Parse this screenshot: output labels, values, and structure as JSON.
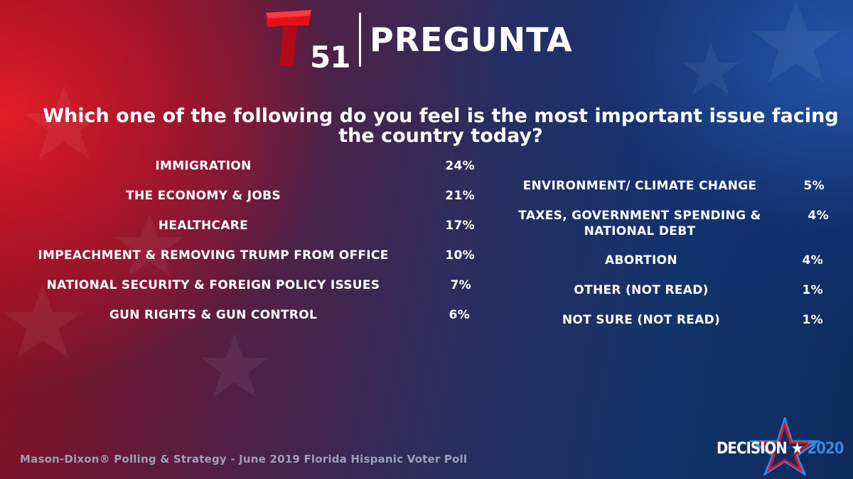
{
  "header": {
    "logo_number": "51",
    "title": "PREGUNTA"
  },
  "question": "Which one of the following do you feel is the most important issue facing the country today?",
  "left_items": [
    {
      "label": "IMMIGRATION",
      "percent": "24%"
    },
    {
      "label": "THE ECONOMY & JOBS",
      "percent": "21%"
    },
    {
      "label": "HEALTHCARE",
      "percent": "17%"
    },
    {
      "label": "IMPEACHMENT & REMOVING TRUMP FROM OFFICE",
      "percent": "10%"
    },
    {
      "label": "NATIONAL SECURITY & FOREIGN POLICY ISSUES",
      "percent": "7%"
    },
    {
      "label": "GUN RIGHTS & GUN CONTROL",
      "percent": "6%"
    }
  ],
  "right_items": [
    {
      "label": "ENVIRONMENT/ CLIMATE CHANGE",
      "percent": "5%"
    },
    {
      "label_line1": "TAXES, GOVERNMENT SPENDING &",
      "label_line2": "NATIONAL DEBT",
      "percent": "4%"
    },
    {
      "label": "ABORTION",
      "percent": "4%"
    },
    {
      "label": "OTHER (NOT READ)",
      "percent": "1%"
    },
    {
      "label": "NOT SURE (NOT READ)",
      "percent": "1%"
    }
  ],
  "footer": "Mason-Dixon® Polling & Strategy - June 2019 Florida Hispanic Voter Poll",
  "decision_logo": {
    "word": "DECISION",
    "star": "★",
    "year": "2020"
  },
  "colors": {
    "brand_red": "#e3101c",
    "decision_blue": "#3a86e0"
  },
  "icons": {
    "brand_logo": "telemundo-t-logo",
    "decision_star": "star-icon"
  }
}
